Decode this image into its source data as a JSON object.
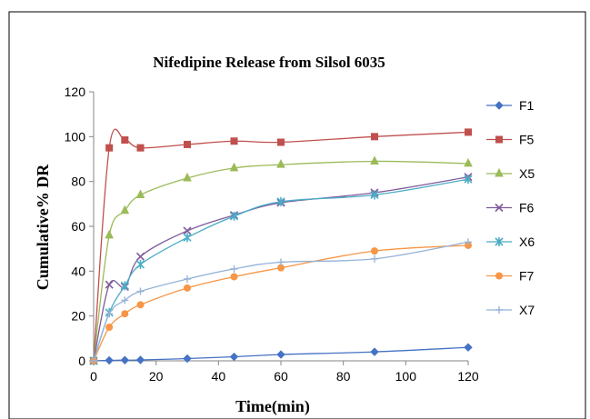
{
  "chart_data": {
    "type": "scatter",
    "title": "Nifedipine Release from Silsol 6035",
    "xlabel": "Time(min)",
    "ylabel": "Cumulative% DR",
    "xlim": [
      0,
      120
    ],
    "ylim": [
      0,
      120
    ],
    "xticks": [
      0,
      20,
      40,
      60,
      80,
      100,
      120
    ],
    "yticks": [
      0,
      20,
      40,
      60,
      80,
      100,
      120
    ],
    "grid": false,
    "smooth_lines": true,
    "legend_position": "right",
    "series": [
      {
        "name": "F1",
        "color": "#4472C4",
        "marker": "diamond",
        "x": [
          0,
          5,
          10,
          15,
          30,
          45,
          60,
          90,
          120
        ],
        "y": [
          0,
          0.2,
          0.3,
          0.4,
          1,
          1.8,
          2.8,
          4,
          6
        ]
      },
      {
        "name": "F5",
        "color": "#C0504D",
        "marker": "square",
        "x": [
          0,
          5,
          10,
          15,
          30,
          45,
          60,
          90,
          120
        ],
        "y": [
          0,
          95,
          98.5,
          95,
          96.5,
          98,
          97.5,
          100,
          102
        ]
      },
      {
        "name": "X5",
        "color": "#9BBB59",
        "marker": "triangle",
        "x": [
          0,
          5,
          10,
          15,
          30,
          45,
          60,
          90,
          120
        ],
        "y": [
          0,
          56,
          67,
          74,
          81.5,
          86,
          87.5,
          89,
          88
        ]
      },
      {
        "name": "F6",
        "color": "#7F5A9B",
        "marker": "x",
        "x": [
          0,
          5,
          10,
          15,
          30,
          45,
          60,
          90,
          120
        ],
        "y": [
          0,
          34,
          33,
          46.5,
          58,
          65,
          70.5,
          75,
          82
        ]
      },
      {
        "name": "X6",
        "color": "#4BACC6",
        "marker": "asterisk",
        "x": [
          0,
          5,
          10,
          15,
          30,
          45,
          60,
          90,
          120
        ],
        "y": [
          0,
          21.5,
          33.5,
          43,
          55,
          64.5,
          71,
          74,
          81
        ]
      },
      {
        "name": "F7",
        "color": "#F79646",
        "marker": "circle",
        "x": [
          0,
          5,
          10,
          15,
          30,
          45,
          60,
          90,
          120
        ],
        "y": [
          0,
          15,
          21,
          25,
          32.5,
          37.5,
          41.5,
          49,
          51.5
        ]
      },
      {
        "name": "X7",
        "color": "#95B3D7",
        "marker": "plus",
        "x": [
          0,
          5,
          10,
          15,
          30,
          45,
          60,
          90,
          120
        ],
        "y": [
          0,
          21,
          27,
          31,
          36.5,
          41,
          44,
          45.5,
          53
        ]
      }
    ]
  }
}
